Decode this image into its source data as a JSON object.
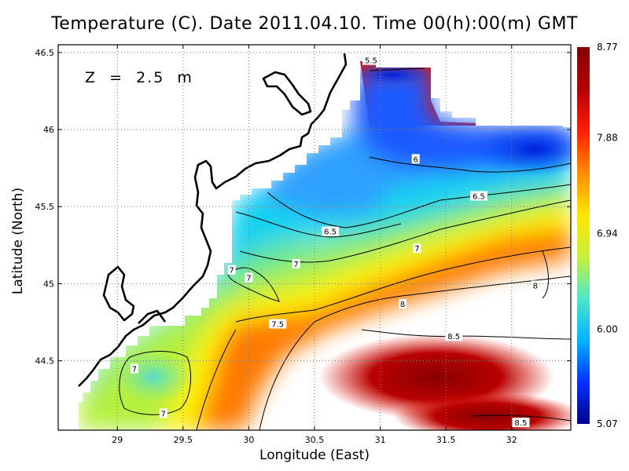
{
  "title": "Temperature (C). Date 2011.04.10. Time 00(h):00(m) GMT",
  "depth_label": "Z  =  2.5  m",
  "chart_data": {
    "type": "heatmap",
    "xlabel": "Longitude (East)",
    "ylabel": "Latitude (North)",
    "xlim": [
      28.55,
      32.45
    ],
    "ylim": [
      44.05,
      46.55
    ],
    "x_ticks": [
      "29",
      "29.5",
      "30",
      "30.5",
      "31",
      "31.5",
      "32"
    ],
    "y_ticks": [
      "44.5",
      "45",
      "45.5",
      "46",
      "46.5"
    ],
    "grid": true,
    "colorbar": {
      "position": "right",
      "min": 5.07,
      "max": 8.77,
      "tick_labels": [
        "8.77",
        "7.88",
        "6.94",
        "6.00",
        "5.07"
      ],
      "colors": [
        "#00008c",
        "#0032ff",
        "#00b4ff",
        "#50e6c8",
        "#c8f03c",
        "#ffe600",
        "#ff8c00",
        "#ff1e00",
        "#b40000",
        "#820000"
      ]
    },
    "contour_labels": [
      {
        "text": "5.5",
        "lon": 30.93,
        "lat": 46.45
      },
      {
        "text": "6",
        "lon": 31.27,
        "lat": 45.81
      },
      {
        "text": "6.5",
        "lon": 31.75,
        "lat": 45.57
      },
      {
        "text": "6.5",
        "lon": 30.62,
        "lat": 45.34
      },
      {
        "text": "7",
        "lon": 31.28,
        "lat": 45.23
      },
      {
        "text": "7",
        "lon": 30.36,
        "lat": 45.13
      },
      {
        "text": "7",
        "lon": 29.87,
        "lat": 45.09
      },
      {
        "text": "7",
        "lon": 30.0,
        "lat": 45.04
      },
      {
        "text": "7.5",
        "lon": 30.22,
        "lat": 44.74
      },
      {
        "text": "8",
        "lon": 31.17,
        "lat": 44.87
      },
      {
        "text": "8",
        "lon": 32.18,
        "lat": 44.99
      },
      {
        "text": "8.5",
        "lon": 31.56,
        "lat": 44.66
      },
      {
        "text": "7",
        "lon": 29.13,
        "lat": 44.45
      },
      {
        "text": "7",
        "lon": 29.35,
        "lat": 44.16
      },
      {
        "text": "8.5",
        "lon": 32.07,
        "lat": 44.1
      }
    ]
  }
}
